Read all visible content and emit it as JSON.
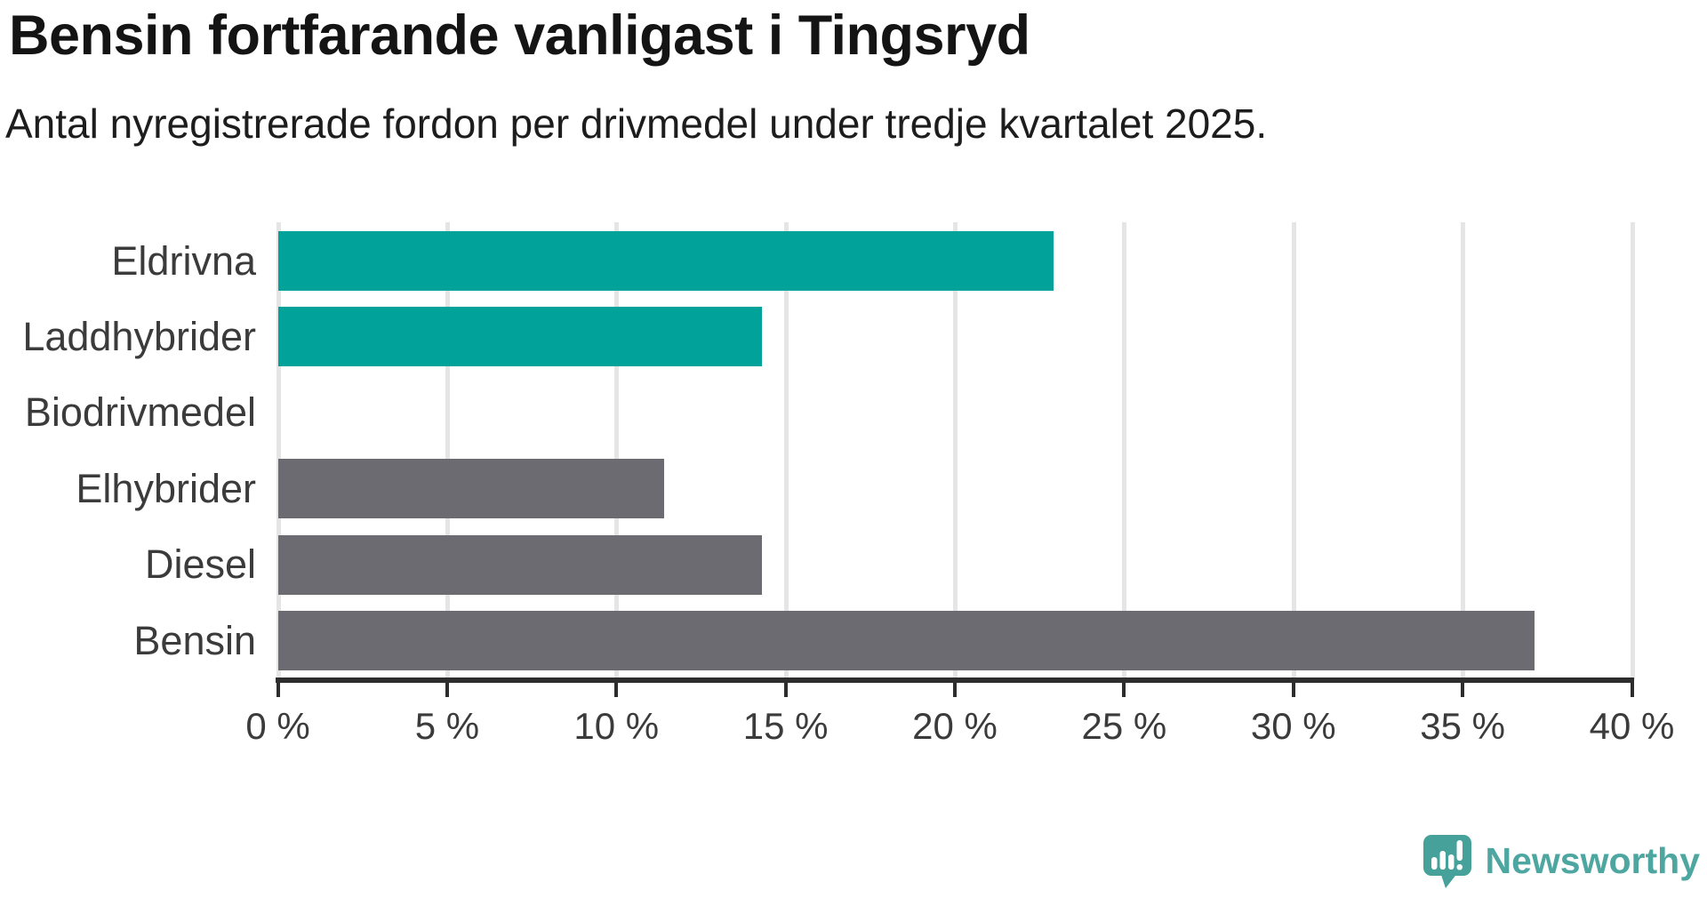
{
  "header": {
    "title": "Bensin fortfarande vanligast i Tingsryd",
    "subtitle": "Antal nyregistrerade fordon per drivmedel under tredje kvartalet 2025."
  },
  "chart_data": {
    "type": "bar",
    "orientation": "horizontal",
    "title": "Bensin fortfarande vanligast i Tingsryd",
    "subtitle": "Antal nyregistrerade fordon per drivmedel under tredje kvartalet 2025.",
    "categories": [
      "Eldrivna",
      "Laddhybrider",
      "Biodrivmedel",
      "Elhybrider",
      "Diesel",
      "Bensin"
    ],
    "values": [
      22.9,
      14.3,
      0,
      11.4,
      14.3,
      37.1
    ],
    "unit": "%",
    "bar_colors": [
      "#00a29a",
      "#00a29a",
      "#6c6b72",
      "#6c6b72",
      "#6c6b72",
      "#6c6b72"
    ],
    "highlight_color": "#00a29a",
    "base_color": "#6c6b72",
    "xlim": [
      0,
      40
    ],
    "x_ticks": [
      0,
      5,
      10,
      15,
      20,
      25,
      30,
      35,
      40
    ],
    "x_tick_labels": [
      "0 %",
      "5 %",
      "10 %",
      "15 %",
      "20 %",
      "25 %",
      "30 %",
      "35 %",
      "40 %"
    ],
    "grid": true,
    "gridline_color": "#e5e5e5",
    "axis_color": "#2d2d2d",
    "legend": "none"
  },
  "branding": {
    "logo_text": "Newsworthy",
    "logo_color": "#4ea6a1",
    "logo_icon": "newsworthy-speech-bubble-chart-icon",
    "logo_icon_color": "#47a19b"
  }
}
